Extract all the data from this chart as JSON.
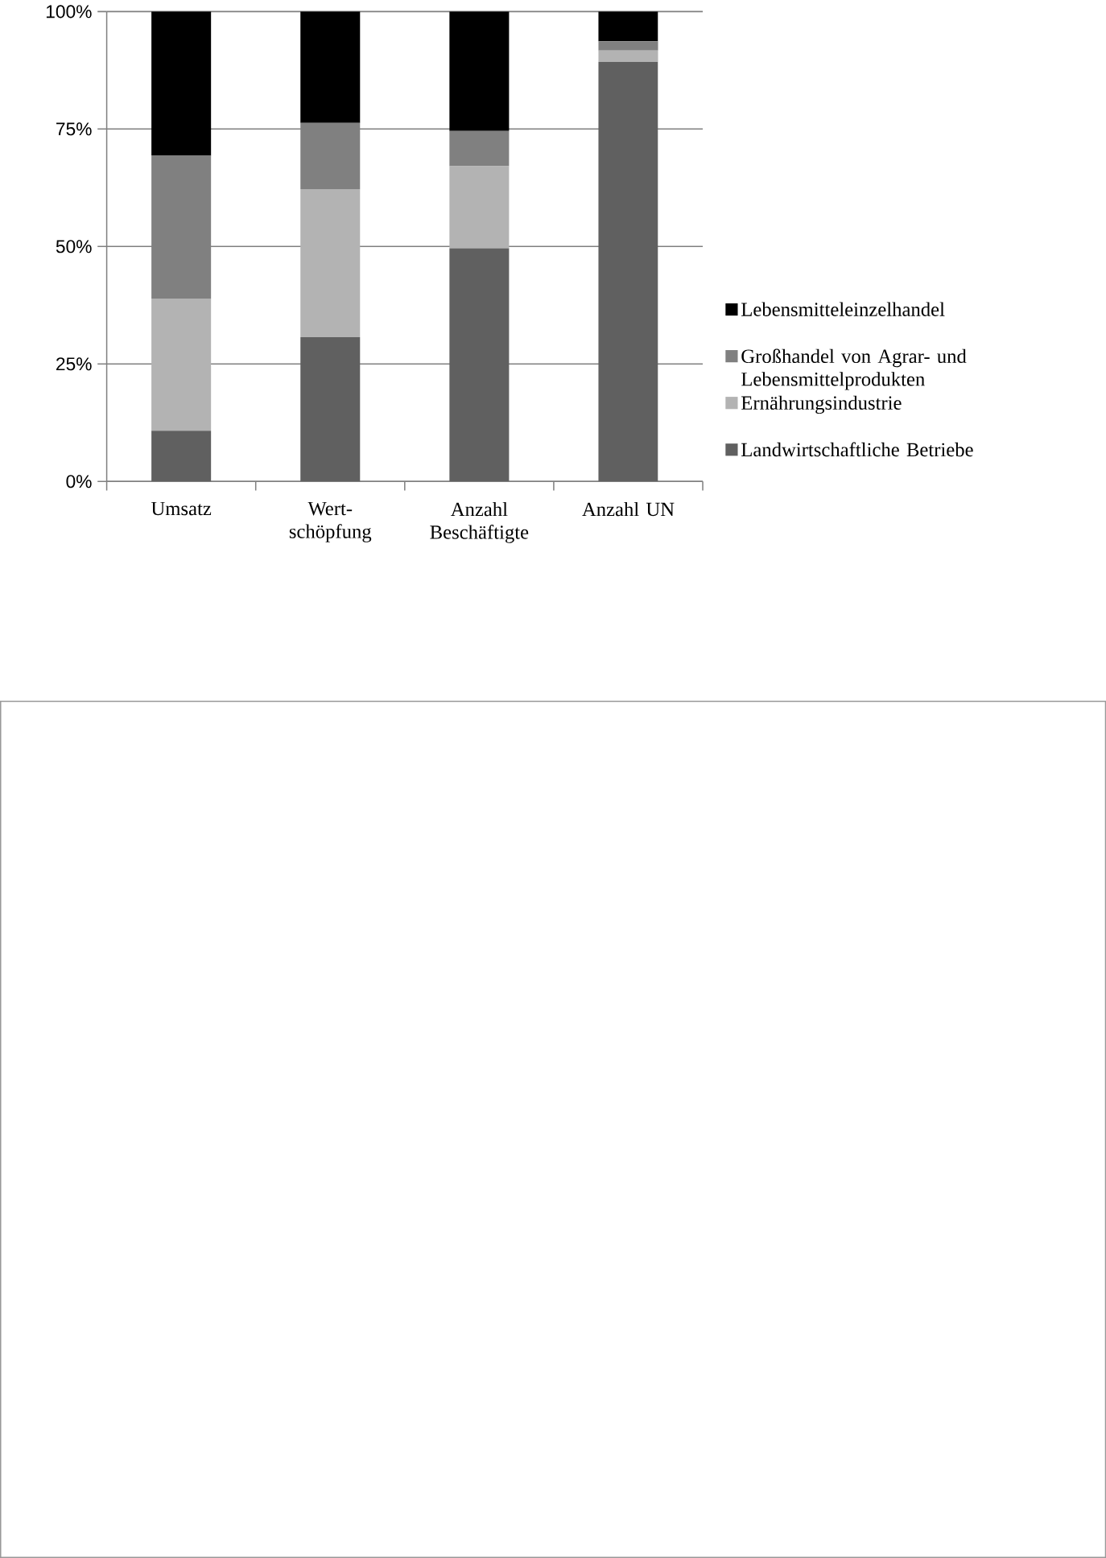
{
  "chart_data": {
    "type": "bar",
    "stacked": true,
    "categories": [
      "Umsatz",
      "Wert-schöpfung",
      "Anzahl Beschäftigte",
      "Anzahl UN"
    ],
    "series": [
      {
        "name": "Landwirtschaftliche Betriebe",
        "color": "#606060",
        "values": [
          10.8,
          30.7,
          49.6,
          89.3
        ]
      },
      {
        "name": "Ernährungsindustrie",
        "color": "#b3b3b3",
        "values": [
          28.1,
          31.5,
          17.5,
          2.4
        ]
      },
      {
        "name": "Großhandel von Agrar- und Lebensmittelprodukten",
        "color": "#808080",
        "values": [
          30.4,
          14.1,
          7.5,
          2.0
        ]
      },
      {
        "name": "Lebensmitteleinzelhandel",
        "color": "#000000",
        "values": [
          30.7,
          23.7,
          25.4,
          6.3
        ]
      }
    ],
    "ylim": [
      0,
      100
    ],
    "yticks": [
      {
        "value": 0,
        "label": "0%"
      },
      {
        "value": 25,
        "label": "25%"
      },
      {
        "value": 50,
        "label": "50%"
      },
      {
        "value": 75,
        "label": "75%"
      },
      {
        "value": 100,
        "label": "100%"
      }
    ],
    "grid": "y",
    "legend": "right"
  }
}
